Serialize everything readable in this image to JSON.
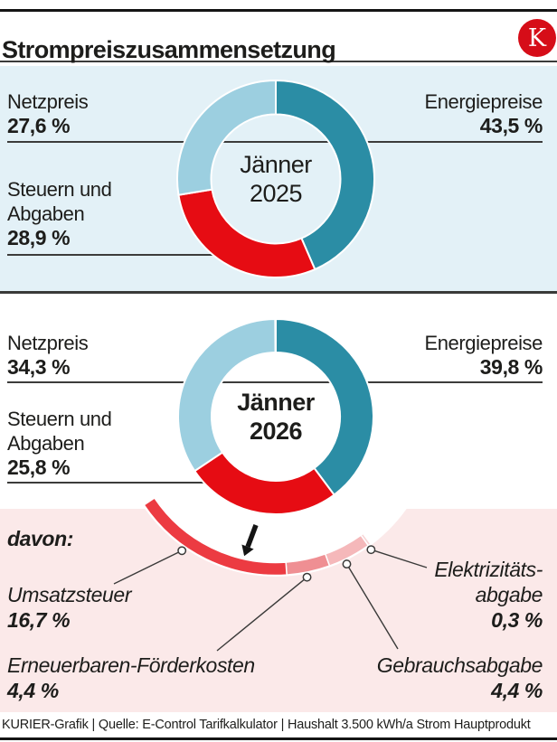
{
  "header": {
    "title": "Strompreiszusammensetzung",
    "logo_letter": "K"
  },
  "chart_2025": {
    "center_line1": "Jänner",
    "center_line2": "2025",
    "netzpreis": {
      "label": "Netzpreis",
      "value": "27,6 %"
    },
    "energiepreise": {
      "label": "Energiepreise",
      "value": "43,5 %"
    },
    "steuern": {
      "label1": "Steuern und",
      "label2": "Abgaben",
      "value": "28,9 %"
    }
  },
  "chart_2026": {
    "center_line1": "Jänner",
    "center_line2": "2026",
    "netzpreis": {
      "label": "Netzpreis",
      "value": "34,3 %"
    },
    "energiepreise": {
      "label": "Energiepreise",
      "value": "39,8 %"
    },
    "steuern": {
      "label1": "Steuern und",
      "label2": "Abgaben",
      "value": "25,8 %"
    }
  },
  "breakdown": {
    "davon_label": "davon:",
    "umsatzsteuer": {
      "label": "Umsatzsteuer",
      "value": "16,7 %"
    },
    "erneuerbaren": {
      "label": "Erneuerbaren-Förderkosten",
      "value": "4,4 %"
    },
    "gebrauchsabgabe": {
      "label": "Gebrauchsabgabe",
      "value": "4,4 %"
    },
    "elektrizitaets": {
      "label1": "Elektrizitäts-",
      "label2": "abgabe",
      "value": "0,3 %"
    }
  },
  "footer": {
    "text": "KURIER-Grafik | Quelle: E-Control Tarifkalkulator | Haushalt 3.500 kWh/a Strom Hauptprodukt"
  },
  "colors": {
    "teal": "#2b8da5",
    "light_blue": "#9ccfe0",
    "red": "#e60c13",
    "arc_red": "#ec3b42",
    "arc_salmon": "#ef8f93",
    "arc_pink": "#f5b8ba",
    "arc_pale_pink": "#f7d5d6",
    "blue_bg": "#e3f1f7",
    "pink_bg": "#fbe9e9",
    "logo_red": "#d60d18"
  },
  "chart_data": [
    {
      "type": "pie",
      "subtype": "donut",
      "title": "Jänner 2025",
      "categories": [
        "Energiepreise",
        "Steuern und Abgaben",
        "Netzpreis"
      ],
      "values": [
        43.5,
        28.9,
        27.6
      ],
      "unit": "%",
      "colors": [
        "#2b8da5",
        "#e60c13",
        "#9ccfe0"
      ],
      "start_angle_deg": 0,
      "direction": "clockwise",
      "legend_position": "around-chart"
    },
    {
      "type": "pie",
      "subtype": "donut",
      "title": "Jänner 2026",
      "categories": [
        "Energiepreise",
        "Steuern und Abgaben",
        "Netzpreis"
      ],
      "values": [
        39.8,
        25.8,
        34.3
      ],
      "unit": "%",
      "colors": [
        "#2b8da5",
        "#e60c13",
        "#9ccfe0"
      ],
      "start_angle_deg": 0,
      "direction": "clockwise",
      "legend_position": "around-chart"
    },
    {
      "type": "pie",
      "subtype": "arc-breakdown",
      "title": "davon: (Aufteilung Steuern und Abgaben Jänner 2026)",
      "categories": [
        "Elektrizitätsabgabe",
        "Gebrauchsabgabe",
        "Erneuerbaren-Förderkosten",
        "Umsatzsteuer"
      ],
      "values": [
        0.3,
        4.4,
        4.4,
        16.7
      ],
      "unit": "%",
      "colors": [
        "#f7d5d6",
        "#f5b8ba",
        "#ef8f93",
        "#ec3b42"
      ],
      "start_angle_deg": 143.28,
      "direction": "clockwise",
      "total_of_parent_percent": 25.8
    }
  ]
}
